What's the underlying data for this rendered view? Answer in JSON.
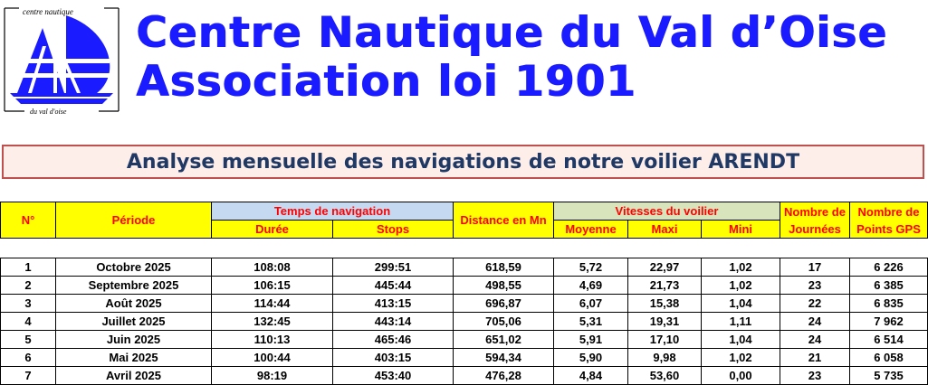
{
  "logo": {
    "top_text": "centre nautique",
    "bottom_text": "du val d'oise",
    "colors": {
      "blue": "#1b1bff",
      "white": "#ffffff"
    }
  },
  "header": {
    "line1": "Centre Nautique du Val d’Oise",
    "line2": "Association loi 1901",
    "color": "#1b1bff"
  },
  "banner": {
    "title": "Analyse mensuelle des navigations de notre voilier ARENDT",
    "text_color": "#1f3864",
    "border_color": "#c0504d",
    "background": "#fdeee9"
  },
  "table": {
    "headers": {
      "num": "N°",
      "periode": "Période",
      "temps_group": "Temps de navigation",
      "duree": "Durée",
      "stops": "Stops",
      "distance": "Distance en Mn",
      "vitesses_group": "Vitesses du voilier",
      "moyenne": "Moyenne",
      "maxi": "Maxi",
      "mini": "Mini",
      "journees": "Nombre de Journées",
      "points": "Nombre de Points GPS"
    },
    "header_colors": {
      "yellow": "#ffff00",
      "blue": "#c5d9f1",
      "green": "#d8e4bc",
      "text": "#ff0000"
    },
    "rows": [
      {
        "n": "1",
        "periode": "Octobre 2025",
        "duree": "108:08",
        "stops": "299:51",
        "distance": "618,59",
        "moyenne": "5,72",
        "maxi": "22,97",
        "mini": "1,02",
        "journees": "17",
        "points": "6 226"
      },
      {
        "n": "2",
        "periode": "Septembre 2025",
        "duree": "106:15",
        "stops": "445:44",
        "distance": "498,55",
        "moyenne": "4,69",
        "maxi": "21,73",
        "mini": "1,02",
        "journees": "23",
        "points": "6 385"
      },
      {
        "n": "3",
        "periode": "Août 2025",
        "duree": "114:44",
        "stops": "413:15",
        "distance": "696,87",
        "moyenne": "6,07",
        "maxi": "15,38",
        "mini": "1,04",
        "journees": "22",
        "points": "6 835"
      },
      {
        "n": "4",
        "periode": "Juillet 2025",
        "duree": "132:45",
        "stops": "443:14",
        "distance": "705,06",
        "moyenne": "5,31",
        "maxi": "19,31",
        "mini": "1,11",
        "journees": "24",
        "points": "7 962"
      },
      {
        "n": "5",
        "periode": "Juin 2025",
        "duree": "110:13",
        "stops": "465:46",
        "distance": "651,02",
        "moyenne": "5,91",
        "maxi": "17,10",
        "mini": "1,04",
        "journees": "24",
        "points": "6 514"
      },
      {
        "n": "6",
        "periode": "Mai 2025",
        "duree": "100:44",
        "stops": "403:15",
        "distance": "594,34",
        "moyenne": "5,90",
        "maxi": "9,98",
        "mini": "1,02",
        "journees": "21",
        "points": "6 058"
      },
      {
        "n": "7",
        "periode": "Avril 2025",
        "duree": "98:19",
        "stops": "453:40",
        "distance": "476,28",
        "moyenne": "4,84",
        "maxi": "53,60",
        "mini": "0,00",
        "journees": "23",
        "points": "5 735"
      }
    ]
  }
}
